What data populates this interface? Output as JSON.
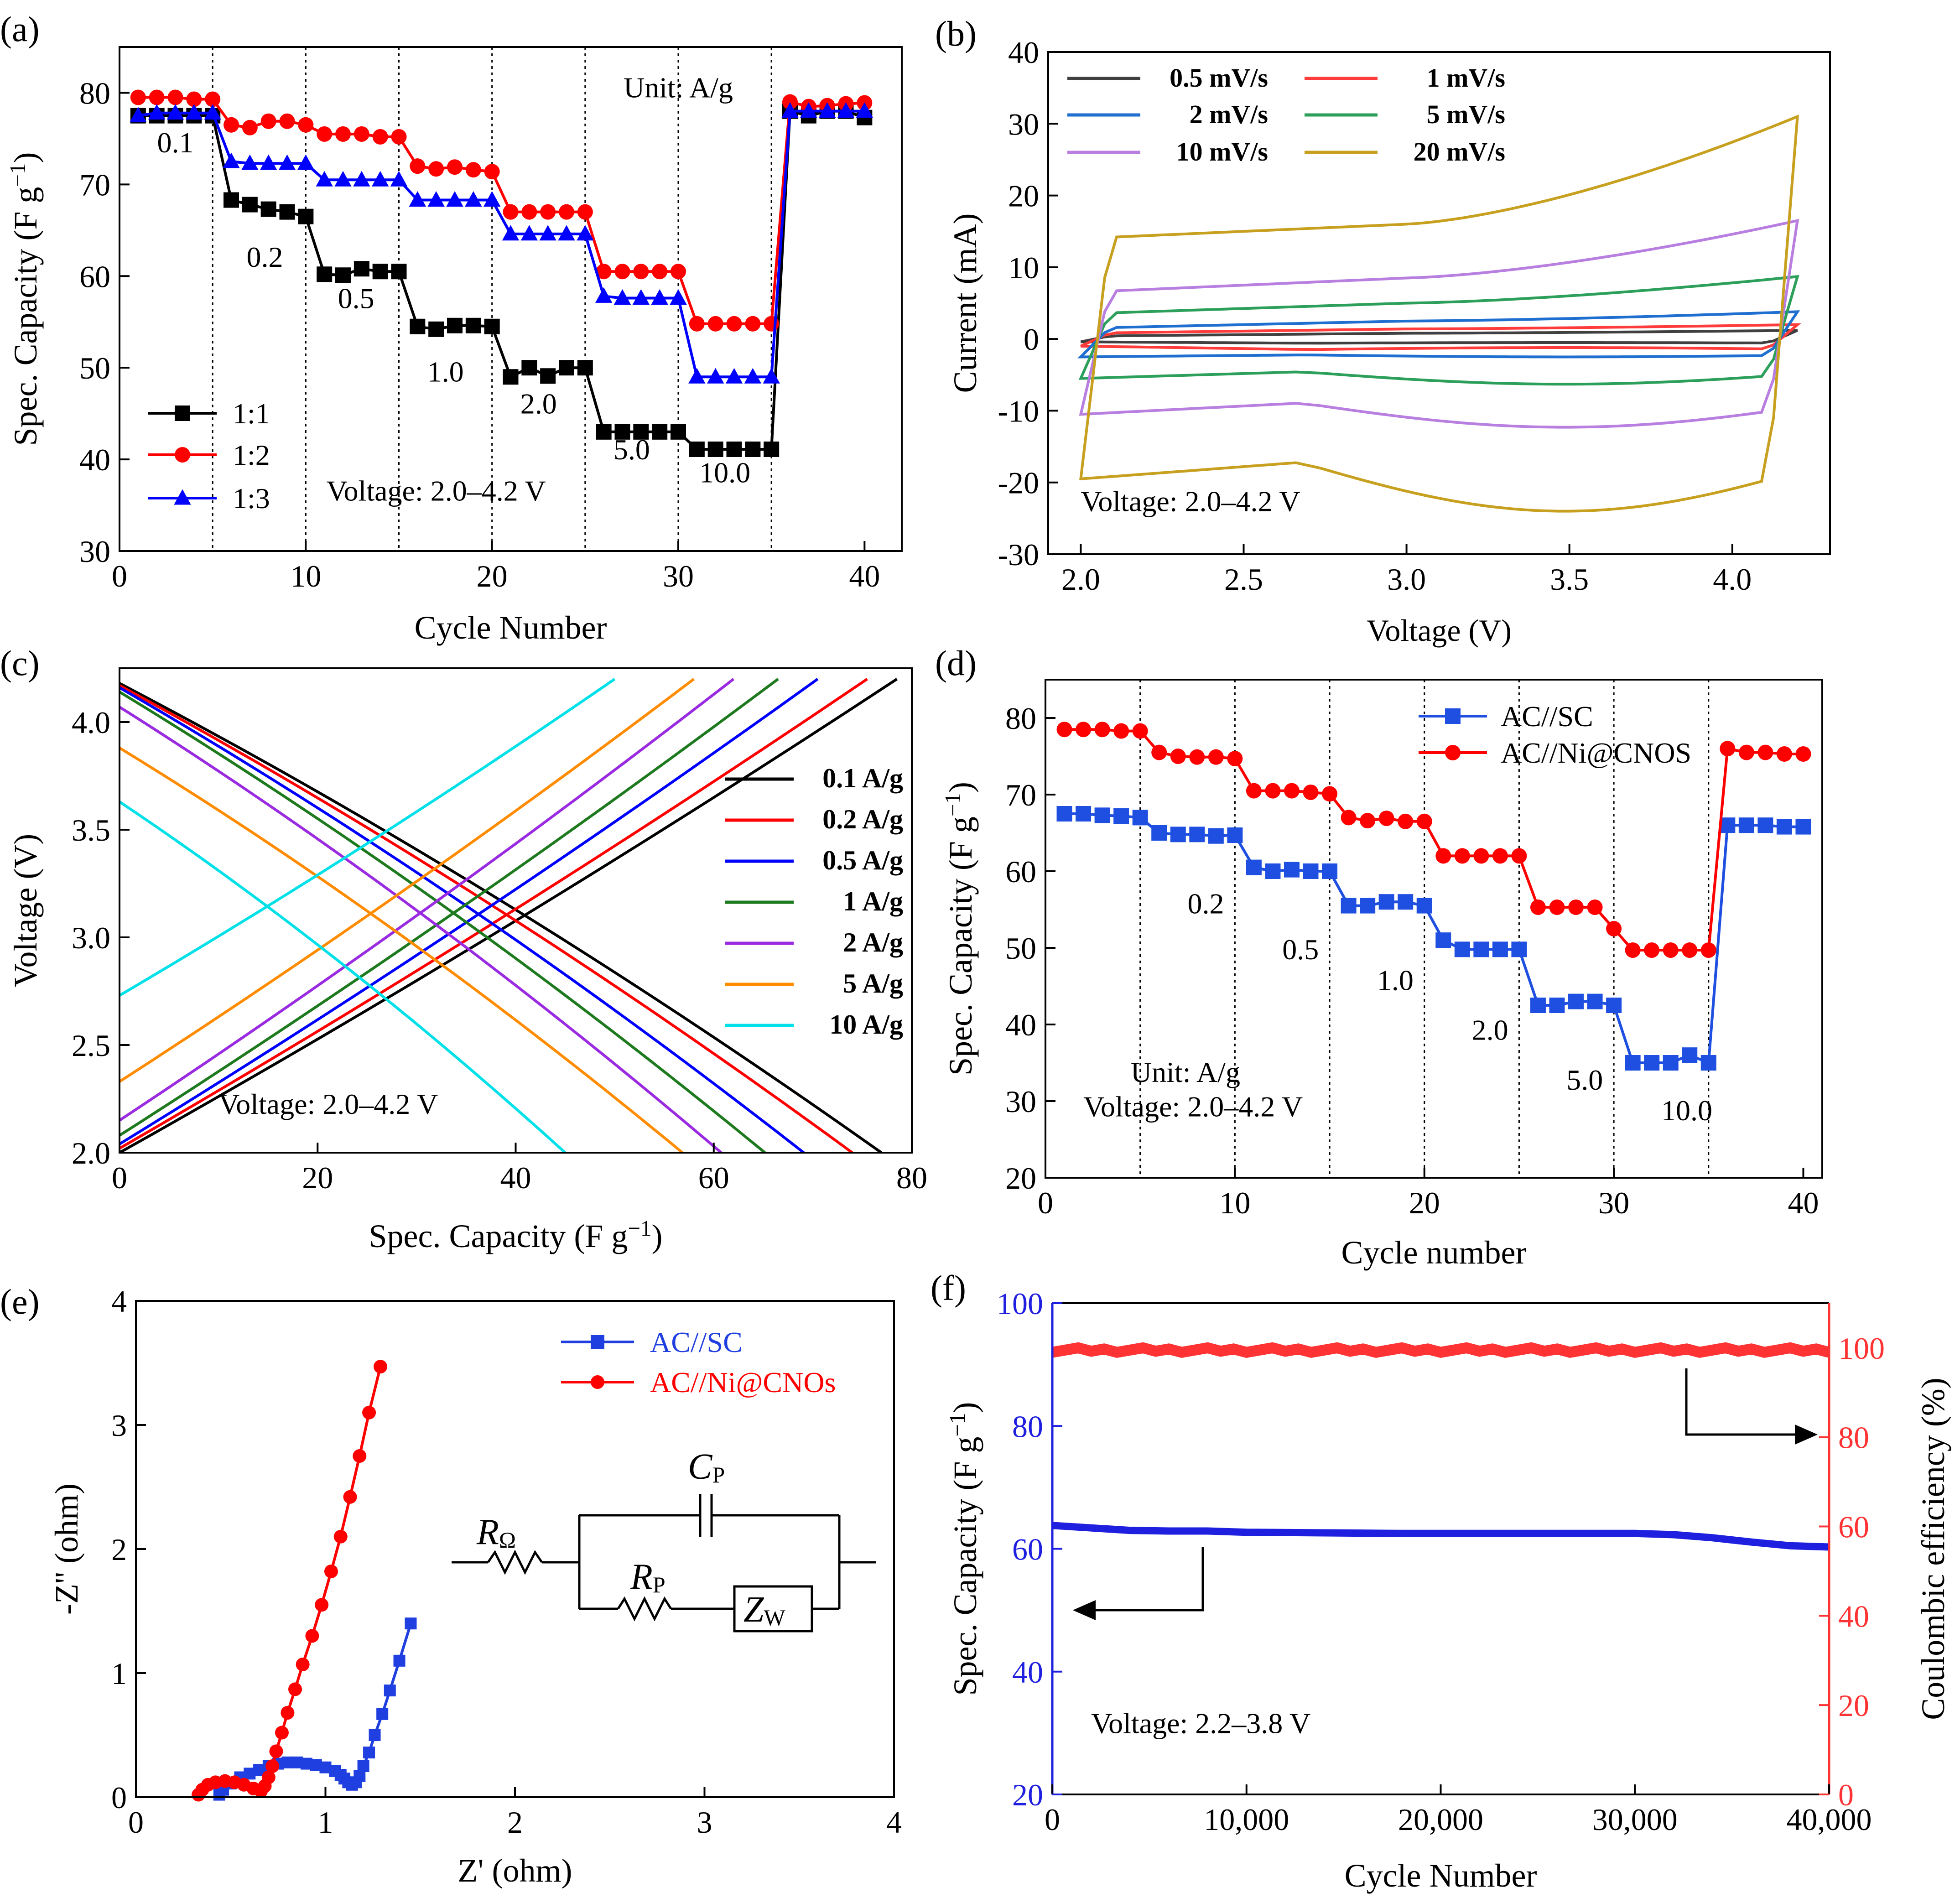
{
  "chart_data": [
    {
      "id": "a",
      "panel_label": "(a)",
      "type": "line",
      "xlabel": "Cycle Number",
      "ylabel": "Spec. Capacity (F g⁻¹)",
      "xlim": [
        0,
        42
      ],
      "ylim": [
        30,
        85
      ],
      "xticks": [
        0,
        10,
        20,
        30,
        40
      ],
      "yticks": [
        30,
        40,
        50,
        60,
        70,
        80
      ],
      "vlines": [
        5,
        10,
        15,
        20,
        25,
        30,
        35
      ],
      "legend_position": "bottom-left",
      "series": [
        {
          "name": "1:1",
          "color": "#000000",
          "marker": "square",
          "x": [
            1,
            2,
            3,
            4,
            5,
            6,
            7,
            8,
            9,
            10,
            11,
            12,
            13,
            14,
            15,
            16,
            17,
            18,
            19,
            20,
            21,
            22,
            23,
            24,
            25,
            26,
            27,
            28,
            29,
            30,
            31,
            32,
            33,
            34,
            35,
            36,
            37,
            38,
            39,
            40
          ],
          "y": [
            77.5,
            77.5,
            77.5,
            77.5,
            77.5,
            68.3,
            67.8,
            67.3,
            67.0,
            66.5,
            60.2,
            60.1,
            60.8,
            60.5,
            60.5,
            54.5,
            54.2,
            54.6,
            54.6,
            54.5,
            49.0,
            50.0,
            49.1,
            50.0,
            50.0,
            43.0,
            43.0,
            43.0,
            43.0,
            43.0,
            41.1,
            41.1,
            41.1,
            41.1,
            41.1,
            78.0,
            77.5,
            78.0,
            78.0,
            77.3
          ]
        },
        {
          "name": "1:2",
          "color": "#ff0000",
          "marker": "circle",
          "x": [
            1,
            2,
            3,
            4,
            5,
            6,
            7,
            8,
            9,
            10,
            11,
            12,
            13,
            14,
            15,
            16,
            17,
            18,
            19,
            20,
            21,
            22,
            23,
            24,
            25,
            26,
            27,
            28,
            29,
            30,
            31,
            32,
            33,
            34,
            35,
            36,
            37,
            38,
            39,
            40
          ],
          "y": [
            79.5,
            79.5,
            79.5,
            79.3,
            79.3,
            76.5,
            76.2,
            76.9,
            76.9,
            76.5,
            75.5,
            75.5,
            75.5,
            75.2,
            75.2,
            72.0,
            71.7,
            71.9,
            71.6,
            71.4,
            67.0,
            67.0,
            67.0,
            67.0,
            67.0,
            60.5,
            60.5,
            60.5,
            60.5,
            60.5,
            54.8,
            54.8,
            54.8,
            54.8,
            54.8,
            79.0,
            78.5,
            78.6,
            78.8,
            78.9
          ]
        },
        {
          "name": "1:3",
          "color": "#0000ff",
          "marker": "triangle",
          "x": [
            1,
            2,
            3,
            4,
            5,
            6,
            7,
            8,
            9,
            10,
            11,
            12,
            13,
            14,
            15,
            16,
            17,
            18,
            19,
            20,
            21,
            22,
            23,
            24,
            25,
            26,
            27,
            28,
            29,
            30,
            31,
            32,
            33,
            34,
            35,
            36,
            37,
            38,
            39,
            40
          ],
          "y": [
            77.5,
            77.8,
            77.8,
            77.8,
            77.8,
            72.5,
            72.3,
            72.3,
            72.3,
            72.3,
            70.5,
            70.5,
            70.5,
            70.5,
            70.5,
            68.3,
            68.3,
            68.3,
            68.3,
            68.3,
            64.6,
            64.6,
            64.6,
            64.6,
            64.6,
            57.8,
            57.6,
            57.6,
            57.6,
            57.6,
            49.0,
            49.0,
            49.0,
            49.0,
            49.0,
            78.0,
            78.0,
            78.0,
            78.0,
            78.0
          ]
        }
      ],
      "annotations": [
        {
          "text": "Unit: A/g",
          "x": 30.0,
          "y": 79.5
        },
        {
          "text": "0.1",
          "x": 3.0,
          "y": 73.5
        },
        {
          "text": "0.2",
          "x": 7.8,
          "y": 61.0
        },
        {
          "text": "0.5",
          "x": 12.7,
          "y": 56.5
        },
        {
          "text": "1.0",
          "x": 17.5,
          "y": 48.5
        },
        {
          "text": "2.0",
          "x": 22.5,
          "y": 45.0
        },
        {
          "text": "5.0",
          "x": 27.5,
          "y": 40.0
        },
        {
          "text": "10.0",
          "x": 32.5,
          "y": 37.5
        },
        {
          "text": "Voltage: 2.0–4.2 V",
          "x": 17.0,
          "y": 35.5
        }
      ]
    },
    {
      "id": "b",
      "panel_label": "(b)",
      "type": "line",
      "xlabel": "Voltage (V)",
      "ylabel": "Current (mA)",
      "xlim": [
        1.9,
        4.3
      ],
      "ylim": [
        -30,
        40
      ],
      "xticks": [
        2.0,
        2.5,
        3.0,
        3.5,
        4.0
      ],
      "yticks": [
        -30,
        -20,
        -10,
        0,
        10,
        20,
        30,
        40
      ],
      "legend_position": "top-left",
      "series": [
        {
          "name": "0.5 mV/s",
          "color": "#404040",
          "upper_start": 0.4,
          "upper_mid": 0.8,
          "upper_end": 1.2,
          "lower_start": -0.4,
          "lower_mid": -0.6,
          "lower_end": -0.5
        },
        {
          "name": "1 mV/s",
          "color": "#ff3b3b",
          "upper_start": 0.8,
          "upper_mid": 1.4,
          "upper_end": 2.0,
          "lower_start": -1.0,
          "lower_mid": -1.5,
          "lower_end": -1.2
        },
        {
          "name": "2 mV/s",
          "color": "#1f6fd0",
          "upper_start": 1.5,
          "upper_mid": 2.5,
          "upper_end": 3.8,
          "lower_start": -2.5,
          "lower_mid": -2.2,
          "lower_end": -2.5
        },
        {
          "name": "5 mV/s",
          "color": "#2ca05a",
          "upper_start": 3.5,
          "upper_mid": 5.0,
          "upper_end": 8.7,
          "lower_start": -5.5,
          "lower_mid": -4.5,
          "lower_end": -6.3
        },
        {
          "name": "10 mV/s",
          "color": "#b87fe0",
          "upper_start": 6.5,
          "upper_mid": 8.5,
          "upper_end": 16.5,
          "lower_start": -10.5,
          "lower_mid": -8.8,
          "lower_end": -12.3
        },
        {
          "name": "20 mV/s",
          "color": "#c8a020",
          "upper_start": 14.0,
          "upper_mid": 16.0,
          "upper_end": 31.0,
          "lower_start": -19.5,
          "lower_mid": -17.0,
          "lower_end": -24.0
        }
      ],
      "annotations": [
        {
          "text": "Voltage: 2.0–4.2 V",
          "x": 2.0,
          "y": -24.0
        }
      ]
    },
    {
      "id": "c",
      "panel_label": "(c)",
      "type": "line",
      "xlabel": "Spec. Capacity (F g⁻¹)",
      "ylabel": "Voltage (V)",
      "xlim": [
        0,
        80
      ],
      "ylim": [
        2.0,
        4.25
      ],
      "xticks": [
        0,
        20,
        40,
        60,
        80
      ],
      "yticks": [
        2.0,
        2.5,
        3.0,
        3.5,
        4.0
      ],
      "legend_position": "right",
      "series": [
        {
          "name": "0.1 A/g",
          "color": "#000000",
          "capacity": 78.5,
          "v0_charge": 2.0,
          "v0_discharge": 4.18
        },
        {
          "name": "0.2 A/g",
          "color": "#ff0000",
          "capacity": 75.5,
          "v0_charge": 2.02,
          "v0_discharge": 4.17
        },
        {
          "name": "0.5 A/g",
          "color": "#0000ff",
          "capacity": 70.5,
          "v0_charge": 2.04,
          "v0_discharge": 4.16
        },
        {
          "name": "1 A/g",
          "color": "#1e7a1e",
          "capacity": 66.5,
          "v0_charge": 2.08,
          "v0_discharge": 4.14
        },
        {
          "name": "2 A/g",
          "color": "#9a2be0",
          "capacity": 62.0,
          "v0_charge": 2.15,
          "v0_discharge": 4.07
        },
        {
          "name": "5 A/g",
          "color": "#ff8c00",
          "capacity": 58.0,
          "v0_charge": 2.33,
          "v0_discharge": 3.88
        },
        {
          "name": "10 A/g",
          "color": "#00e0e8",
          "capacity": 50.0,
          "v0_charge": 2.73,
          "v0_discharge": 3.63
        }
      ],
      "annotations": [
        {
          "text": "Voltage: 2.0–4.2 V",
          "x": 10.0,
          "y": 2.18
        }
      ]
    },
    {
      "id": "d",
      "panel_label": "(d)",
      "type": "line",
      "xlabel": "Cycle number",
      "ylabel": "Spec. Capacity (F g⁻¹)",
      "xlim": [
        0,
        41
      ],
      "ylim": [
        20,
        85
      ],
      "xticks": [
        0,
        10,
        20,
        30,
        40
      ],
      "yticks": [
        20,
        30,
        40,
        50,
        60,
        70,
        80
      ],
      "vlines": [
        5,
        10,
        15,
        20,
        25,
        30,
        35
      ],
      "legend_position": "top-right",
      "series": [
        {
          "name": "AC//SC",
          "color": "#1f4fe0",
          "marker": "square",
          "x": [
            1,
            2,
            3,
            4,
            5,
            6,
            7,
            8,
            9,
            10,
            11,
            12,
            13,
            14,
            15,
            16,
            17,
            18,
            19,
            20,
            21,
            22,
            23,
            24,
            25,
            26,
            27,
            28,
            29,
            30,
            31,
            32,
            33,
            34,
            35,
            36,
            37,
            38,
            39,
            40
          ],
          "y": [
            67.5,
            67.5,
            67.3,
            67.2,
            67.0,
            65.0,
            64.8,
            64.8,
            64.6,
            64.7,
            60.5,
            60.0,
            60.2,
            60.0,
            60.0,
            55.5,
            55.5,
            56.0,
            56.0,
            55.5,
            51.0,
            49.8,
            49.8,
            49.8,
            49.8,
            42.5,
            42.5,
            43.0,
            43.0,
            42.5,
            35.0,
            35.0,
            35.0,
            36.0,
            35.0,
            66.0,
            66.0,
            66.0,
            65.8,
            65.8
          ]
        },
        {
          "name": "AC//Ni@CNOS",
          "color": "#ff0000",
          "marker": "circle",
          "x": [
            1,
            2,
            3,
            4,
            5,
            6,
            7,
            8,
            9,
            10,
            11,
            12,
            13,
            14,
            15,
            16,
            17,
            18,
            19,
            20,
            21,
            22,
            23,
            24,
            25,
            26,
            27,
            28,
            29,
            30,
            31,
            32,
            33,
            34,
            35,
            36,
            37,
            38,
            39,
            40
          ],
          "y": [
            78.5,
            78.5,
            78.5,
            78.3,
            78.3,
            75.5,
            75.0,
            74.9,
            74.9,
            74.7,
            70.5,
            70.5,
            70.5,
            70.3,
            70.1,
            67.0,
            66.6,
            66.9,
            66.5,
            66.5,
            62.0,
            62.0,
            62.0,
            62.0,
            62.0,
            55.3,
            55.3,
            55.3,
            55.3,
            52.5,
            49.7,
            49.7,
            49.7,
            49.7,
            49.7,
            76.0,
            75.5,
            75.5,
            75.3,
            75.3
          ]
        }
      ],
      "annotations": [
        {
          "text": "0.2",
          "x": 7.5,
          "y": 54.5
        },
        {
          "text": "0.5",
          "x": 12.5,
          "y": 48.5
        },
        {
          "text": "1.0",
          "x": 17.5,
          "y": 44.5
        },
        {
          "text": "2.0",
          "x": 22.5,
          "y": 38.0
        },
        {
          "text": "5.0",
          "x": 27.5,
          "y": 31.5
        },
        {
          "text": "10.0",
          "x": 32.5,
          "y": 27.5
        },
        {
          "text": "Unit: A/g",
          "x": 4.5,
          "y": 32.5
        },
        {
          "text": "Voltage: 2.0–4.2 V",
          "x": 2.0,
          "y": 28.0
        }
      ]
    },
    {
      "id": "e",
      "panel_label": "(e)",
      "type": "scatter",
      "xlabel": "Z' (ohm)",
      "ylabel": "-Z'' (ohm)",
      "xlim": [
        0,
        4
      ],
      "ylim": [
        0,
        4
      ],
      "xticks": [
        0,
        1,
        2,
        3,
        4
      ],
      "yticks": [
        0,
        1,
        2,
        3,
        4
      ],
      "legend_position": "top-right",
      "series": [
        {
          "name": "AC//SC",
          "color": "#1f3fe0",
          "marker": "square",
          "x": [
            0.44,
            0.46,
            0.5,
            0.55,
            0.6,
            0.65,
            0.7,
            0.75,
            0.8,
            0.85,
            0.9,
            0.95,
            1.0,
            1.05,
            1.08,
            1.1,
            1.12,
            1.14,
            1.16,
            1.18,
            1.2,
            1.23,
            1.26,
            1.3,
            1.34,
            1.39,
            1.45
          ],
          "y": [
            0.02,
            0.06,
            0.11,
            0.16,
            0.19,
            0.22,
            0.25,
            0.27,
            0.28,
            0.28,
            0.27,
            0.26,
            0.24,
            0.21,
            0.18,
            0.15,
            0.12,
            0.1,
            0.12,
            0.17,
            0.25,
            0.36,
            0.5,
            0.67,
            0.86,
            1.1,
            1.4
          ]
        },
        {
          "name": "AC//Ni@CNOs",
          "color": "#ff0000",
          "marker": "circle",
          "x": [
            0.33,
            0.35,
            0.38,
            0.42,
            0.47,
            0.52,
            0.57,
            0.62,
            0.66,
            0.68,
            0.7,
            0.72,
            0.74,
            0.77,
            0.8,
            0.84,
            0.88,
            0.93,
            0.98,
            1.03,
            1.08,
            1.13,
            1.18,
            1.23,
            1.29
          ],
          "y": [
            0.02,
            0.06,
            0.1,
            0.12,
            0.13,
            0.12,
            0.1,
            0.07,
            0.05,
            0.09,
            0.16,
            0.25,
            0.37,
            0.52,
            0.68,
            0.87,
            1.07,
            1.3,
            1.55,
            1.82,
            2.1,
            2.42,
            2.75,
            3.1,
            3.47
          ]
        }
      ],
      "circuit_labels": {
        "r_omega": "R",
        "r_omega_sub": "Ω",
        "cp": "C",
        "cp_sub": "P",
        "rp": "R",
        "rp_sub": "P",
        "zw": "Z",
        "zw_sub": "W"
      }
    },
    {
      "id": "f",
      "panel_label": "(f)",
      "type": "line",
      "xlabel": "Cycle Number",
      "ylabel": "Spec. Capacity (F g⁻¹)",
      "y2label": "Coulombic efficiency (%)",
      "xlim": [
        0,
        40000
      ],
      "ylim": [
        20,
        100
      ],
      "y2lim": [
        0,
        110
      ],
      "xticks": [
        0,
        10000,
        20000,
        30000,
        40000
      ],
      "xtick_labels": [
        "0",
        "10,000",
        "20,000",
        "30,000",
        "40,000"
      ],
      "yticks": [
        20,
        40,
        60,
        80,
        100
      ],
      "y2ticks": [
        0,
        20,
        40,
        60,
        80,
        100
      ],
      "series": [
        {
          "name": "Spec. Capacity",
          "axis": "left",
          "color": "#1f1fe0",
          "x": [
            0,
            2000,
            4000,
            6000,
            8000,
            10000,
            14000,
            18000,
            22000,
            26000,
            30000,
            32000,
            34000,
            36000,
            38000,
            40000
          ],
          "y": [
            63.8,
            63.4,
            63.0,
            62.9,
            62.9,
            62.7,
            62.6,
            62.5,
            62.5,
            62.5,
            62.5,
            62.3,
            61.8,
            61.1,
            60.5,
            60.3
          ]
        },
        {
          "name": "Coulombic efficiency",
          "axis": "right",
          "color": "#ff3333",
          "value": 99.5
        }
      ],
      "annotations": [
        {
          "text": "Voltage: 2.2–3.8 V",
          "x": 2000,
          "y": 30
        }
      ]
    }
  ]
}
